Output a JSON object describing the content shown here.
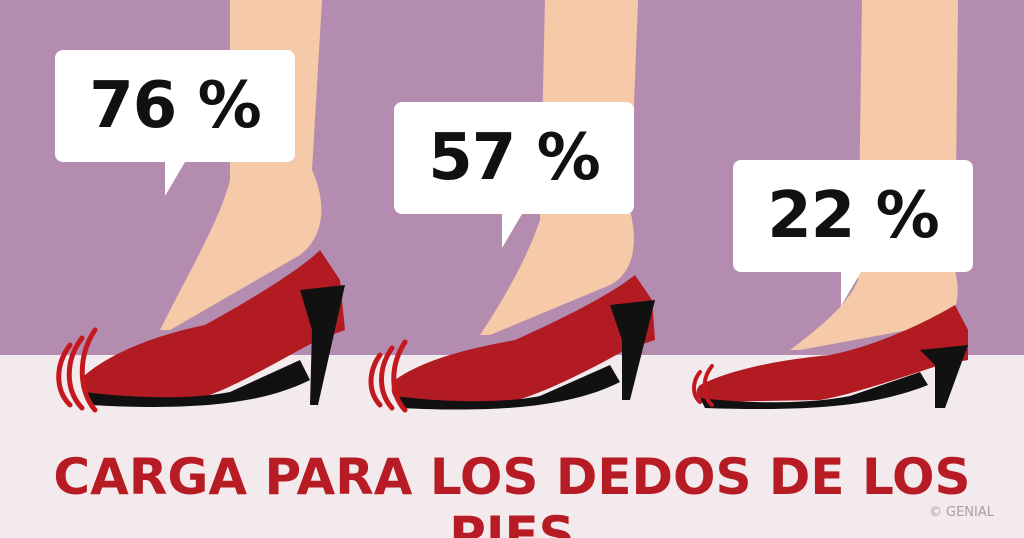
{
  "panels": [
    {
      "label": "76 %"
    },
    {
      "label": "57 %"
    },
    {
      "label": "22 %"
    }
  ],
  "caption": "CARGA PARA LOS DEDOS DE LOS PIES",
  "credit": "© GENIAL",
  "colors": {
    "wall": "#b48cb0",
    "floor": "#f3eaed",
    "shoe": "#b31b22",
    "skin": "#f6c9a9",
    "caption": "#b71c24"
  }
}
